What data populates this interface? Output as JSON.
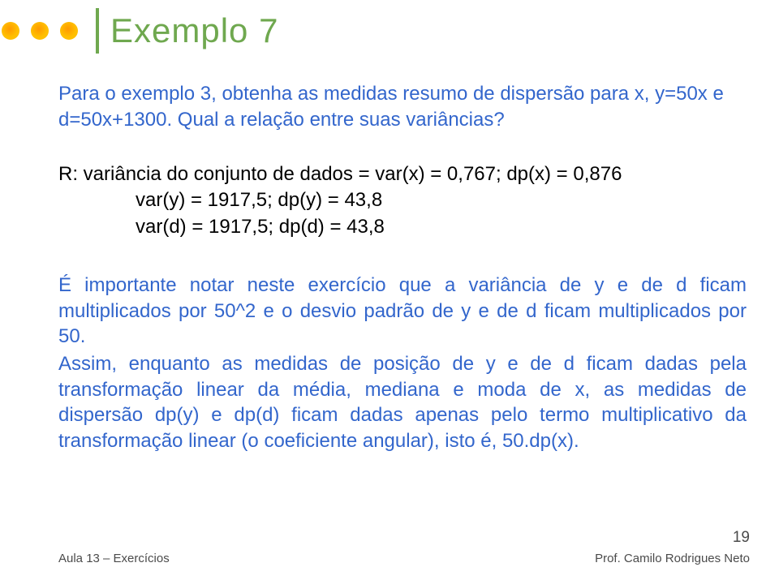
{
  "colors": {
    "title": "#6fa84f",
    "divider": "#6fa84f",
    "dot_outer": "#ffbf00",
    "dot_inner": "#ff9900",
    "body_text": "#3366cc",
    "answer_text": "#000000",
    "note_text": "#3366cc",
    "footer_text": "#4b4b4b",
    "background": "#ffffff"
  },
  "fontsize": {
    "title": 42,
    "body": 24,
    "footer_small": 15,
    "page_num": 19
  },
  "header": {
    "title": "Exemplo 7"
  },
  "question": {
    "line1": "Para o exemplo 3, obtenha as medidas resumo de dispersão para x, y=50x e d=50x+1300. Qual a relação entre suas variâncias?"
  },
  "answer": {
    "lead": "R: variância do conjunto de dados = var(x) = 0,767; dp(x) = 0,876",
    "line_y": "var(y) = 1917,5; dp(y) = 43,8",
    "line_d": "var(d) = 1917,5; dp(d) = 43,8"
  },
  "note": {
    "p1": "É importante notar neste exercício que a variância de y e de d ficam multiplicados por 50^2 e o desvio padrão de y e de d ficam multiplicados por 50.",
    "p2": "Assim, enquanto as medidas de posição de y e de d ficam dadas pela transformação linear da média, mediana e moda de x, as medidas de dispersão dp(y) e dp(d) ficam dadas apenas pelo termo multiplicativo da transformação linear (o coeficiente angular), isto é, 50.dp(x)."
  },
  "footer": {
    "left": "Aula 13 – Exercícios",
    "page": "19",
    "right": "Prof. Camilo Rodrigues Neto"
  }
}
